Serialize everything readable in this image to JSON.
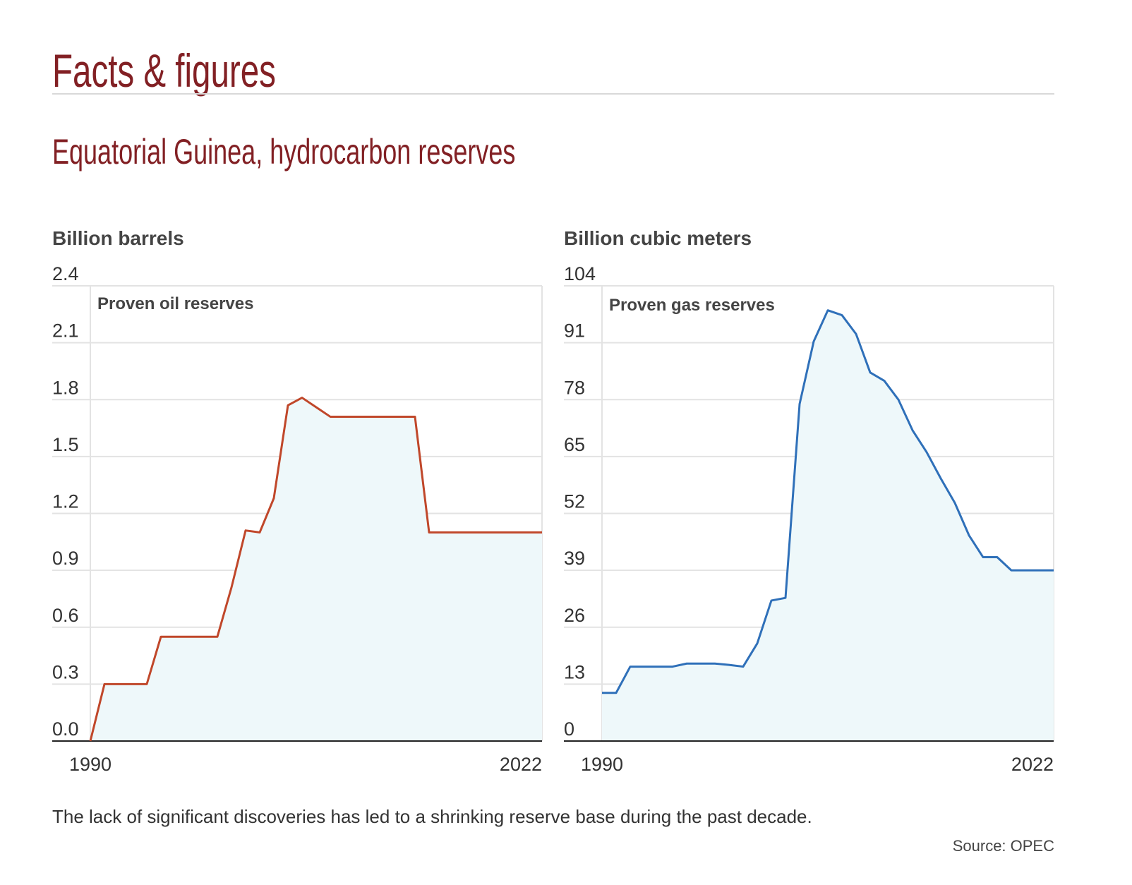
{
  "header": {
    "title": "Facts & figures",
    "subtitle": "Equatorial Guinea, hydrocarbon reserves"
  },
  "footer": {
    "note": "The lack of significant discoveries has led to a shrinking reserve base during the past decade.",
    "source": "Source: OPEC"
  },
  "chart_data": [
    {
      "type": "area",
      "title": "Proven oil reserves",
      "ylabel": "Billion barrels",
      "xlabel": "",
      "x_tick_labels": [
        "1990",
        "2022"
      ],
      "y_tick_labels": [
        "0.0",
        "0.3",
        "0.6",
        "0.9",
        "1.2",
        "1.5",
        "1.8",
        "2.1",
        "2.4"
      ],
      "xlim": [
        1990,
        2022
      ],
      "ylim": [
        0,
        2.4
      ],
      "grid": true,
      "line_color": "#c0472a",
      "fill_color": "#eef8fa",
      "x": [
        1990,
        1991,
        1992,
        1993,
        1994,
        1995,
        1996,
        1997,
        1998,
        1999,
        2000,
        2001,
        2002,
        2003,
        2004,
        2005,
        2006,
        2007,
        2008,
        2009,
        2010,
        2011,
        2012,
        2013,
        2014,
        2015,
        2016,
        2017,
        2018,
        2019,
        2020,
        2021,
        2022
      ],
      "values": [
        0,
        0.3,
        0.3,
        0.3,
        0.3,
        0.55,
        0.55,
        0.55,
        0.55,
        0.55,
        0.81,
        1.11,
        1.1,
        1.28,
        1.77,
        1.81,
        1.76,
        1.71,
        1.71,
        1.71,
        1.71,
        1.71,
        1.71,
        1.71,
        1.1,
        1.1,
        1.1,
        1.1,
        1.1,
        1.1,
        1.1,
        1.1,
        1.1
      ]
    },
    {
      "type": "area",
      "title": "Proven gas reserves",
      "ylabel": "Billion cubic meters",
      "xlabel": "",
      "x_tick_labels": [
        "1990",
        "2022"
      ],
      "y_tick_labels": [
        "0",
        "13",
        "26",
        "39",
        "52",
        "65",
        "78",
        "91",
        "104"
      ],
      "xlim": [
        1990,
        2022
      ],
      "ylim": [
        0,
        104
      ],
      "grid": true,
      "line_color": "#2f70b9",
      "fill_color": "#eef8fa",
      "x": [
        1990,
        1991,
        1992,
        1993,
        1994,
        1995,
        1996,
        1997,
        1998,
        1999,
        2000,
        2001,
        2002,
        2003,
        2004,
        2005,
        2006,
        2007,
        2008,
        2009,
        2010,
        2011,
        2012,
        2013,
        2014,
        2015,
        2016,
        2017,
        2018,
        2019,
        2020,
        2021,
        2022
      ],
      "values": [
        11,
        11,
        17,
        17,
        17,
        17,
        17.7,
        17.7,
        17.7,
        17.4,
        17,
        22.3,
        32.1,
        32.7,
        77,
        91.3,
        98.4,
        97.3,
        93,
        84.2,
        82.3,
        78,
        71,
        66,
        60,
        54.4,
        47,
        42,
        42,
        39,
        39,
        39,
        39
      ]
    }
  ]
}
